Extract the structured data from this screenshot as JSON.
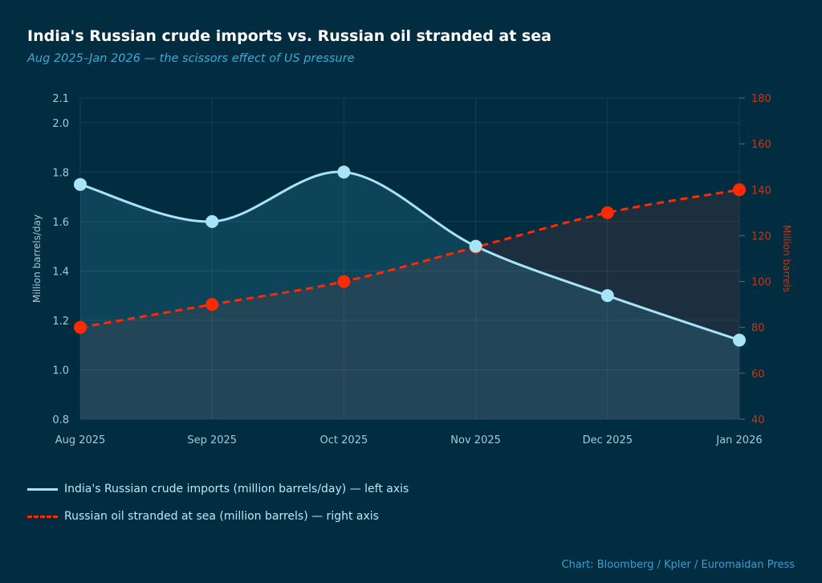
{
  "title": "India's Russian crude imports vs. Russian oil stranded at sea",
  "subtitle": "Aug 2025–Jan 2026 — the scissors effect of US pressure",
  "source": "Chart: Bloomberg / Kpler / Euromaidan Press",
  "colors": {
    "background": "#022d41",
    "imports": "#a8e4f8",
    "stranded": "#ff2a00",
    "right_axis": "#c0391b"
  },
  "chart_data": {
    "type": "line",
    "categories": [
      "Aug 2025",
      "Sep 2025",
      "Oct 2025",
      "Nov 2025",
      "Dec 2025",
      "Jan 2026"
    ],
    "grid": true,
    "legend_placement": "bottom-left",
    "left_axis": {
      "label": "Million barrels/day",
      "range": [
        0.8,
        2.1
      ],
      "ticks": [
        "0.8",
        "1.0",
        "1.2",
        "1.4",
        "1.6",
        "1.8",
        "2.0",
        "2.1"
      ]
    },
    "right_axis": {
      "label": "Million barrels",
      "range": [
        40,
        180
      ],
      "ticks": [
        "40",
        "60",
        "80",
        "100",
        "120",
        "140",
        "160",
        "180"
      ]
    },
    "series": [
      {
        "name": "India's Russian crude imports (million barrels/day) — left axis",
        "axis": "left",
        "style": "solid",
        "values": [
          1.75,
          1.6,
          1.8,
          1.5,
          1.3,
          1.12
        ]
      },
      {
        "name": "Russian oil stranded at sea (million barrels) — right axis",
        "axis": "right",
        "style": "dashed",
        "values": [
          80,
          90,
          100,
          115,
          130,
          140
        ]
      }
    ]
  }
}
